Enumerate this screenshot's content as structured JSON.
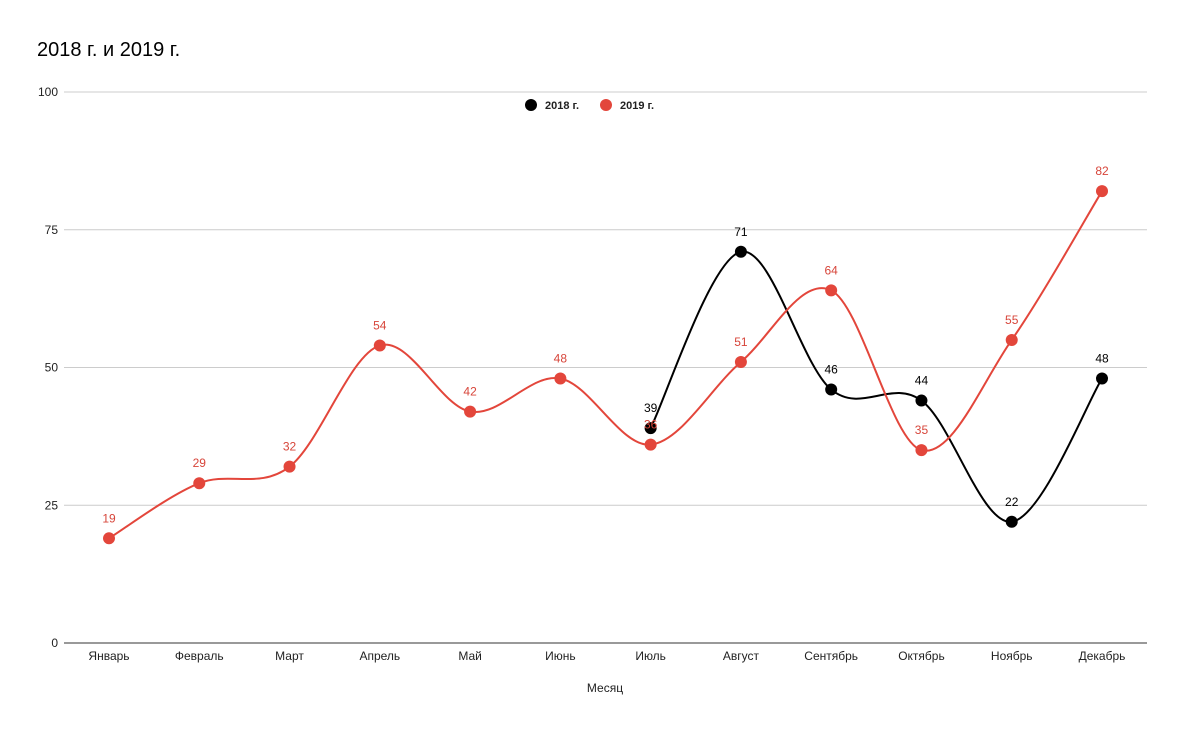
{
  "chart_data": {
    "type": "line",
    "title": "2018 г. и 2019 г.",
    "xlabel": "Месяц",
    "ylabel": "",
    "ylim": [
      0,
      100
    ],
    "yticks": [
      "0",
      "25",
      "50",
      "75",
      "100"
    ],
    "ytick_values": [
      0,
      25,
      50,
      75,
      100
    ],
    "grid": true,
    "legend_position": "top-center",
    "categories": [
      "Январь",
      "Февраль",
      "Март",
      "Апрель",
      "Май",
      "Июнь",
      "Июль",
      "Август",
      "Сентябрь",
      "Октябрь",
      "Ноябрь",
      "Декабрь"
    ],
    "series": [
      {
        "name": "2018 г.",
        "color": "#000000",
        "values": [
          null,
          null,
          null,
          null,
          null,
          null,
          39,
          71,
          46,
          44,
          22,
          48
        ]
      },
      {
        "name": "2019 г.",
        "color": "#e3463b",
        "values": [
          19,
          29,
          32,
          54,
          42,
          48,
          36,
          51,
          64,
          35,
          55,
          82
        ]
      }
    ]
  }
}
